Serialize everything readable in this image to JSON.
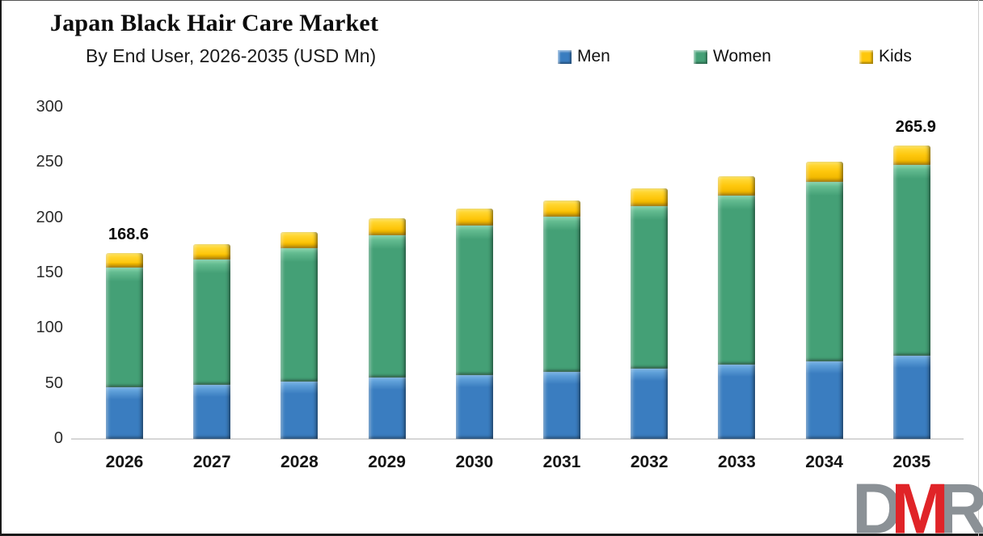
{
  "header": {
    "title": "Japan Black Hair Care Market",
    "subtitle": "By End User, 2026-2035 (USD Mn)"
  },
  "legend": {
    "items": [
      {
        "label": "Men",
        "color": "#3a7dc0"
      },
      {
        "label": "Women",
        "color": "#44a076"
      },
      {
        "label": "Kids",
        "color": "#fec70c"
      }
    ]
  },
  "chart_data": {
    "type": "bar",
    "stacked": true,
    "title": "Japan Black Hair Care Market",
    "subtitle": "By End User, 2026-2035 (USD Mn)",
    "unit": "USD Mn",
    "categories": [
      "2026",
      "2027",
      "2028",
      "2029",
      "2030",
      "2031",
      "2032",
      "2033",
      "2034",
      "2035"
    ],
    "series": [
      {
        "name": "Men",
        "color": "#3a7dc0",
        "values": [
          47,
          49,
          52,
          55.5,
          58,
          60.5,
          64,
          67,
          70.5,
          75
        ]
      },
      {
        "name": "Women",
        "color": "#44a076",
        "values": [
          108,
          113.5,
          121,
          129,
          135.5,
          140.5,
          146.5,
          153.5,
          162,
          173
        ]
      },
      {
        "name": "Kids",
        "color": "#fec70c",
        "values": [
          13.6,
          14,
          14,
          15.3,
          15,
          14.6,
          16.5,
          17.4,
          18.2,
          17.9
        ]
      }
    ],
    "totals": [
      168.6,
      176.5,
      187,
      199.8,
      208.5,
      215.6,
      227,
      237.9,
      250.7,
      265.9
    ],
    "annotations": [
      {
        "category": "2026",
        "text": "168.6"
      },
      {
        "category": "2035",
        "text": "265.9"
      }
    ],
    "ylim": [
      0,
      300
    ],
    "yticks": [
      0,
      50,
      100,
      150,
      200,
      250,
      300
    ],
    "grid": false,
    "legend_position": "top-right",
    "baseline_color": "#d6d6d6"
  },
  "logo": {
    "letters": [
      {
        "char": "D",
        "color": "#8b9196"
      },
      {
        "char": "M",
        "color": "#e02428"
      },
      {
        "char": "R",
        "color": "#8b9196"
      }
    ]
  }
}
